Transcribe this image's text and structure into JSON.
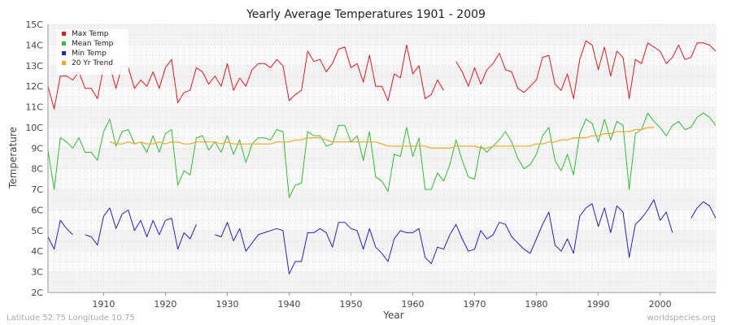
{
  "chart_data": {
    "type": "line",
    "title": "Yearly Average Temperatures 1901 - 2009",
    "xlabel": "Year",
    "ylabel": "Temperature",
    "xlim": [
      1901,
      2009
    ],
    "ylim": [
      2,
      15
    ],
    "x_ticks": [
      1910,
      1920,
      1930,
      1940,
      1950,
      1960,
      1970,
      1980,
      1990,
      2000
    ],
    "y_ticks": [
      "2C",
      "3C",
      "4C",
      "5C",
      "6C",
      "7C",
      "8C",
      "9C",
      "10C",
      "11C",
      "12C",
      "13C",
      "14C",
      "15C"
    ],
    "grid": true,
    "legend_position": "top-left",
    "x": [
      1901,
      1902,
      1903,
      1904,
      1905,
      1906,
      1907,
      1908,
      1909,
      1910,
      1911,
      1912,
      1913,
      1914,
      1915,
      1916,
      1917,
      1918,
      1919,
      1920,
      1921,
      1922,
      1923,
      1924,
      1925,
      1926,
      1927,
      1928,
      1929,
      1930,
      1931,
      1932,
      1933,
      1934,
      1935,
      1936,
      1937,
      1938,
      1939,
      1940,
      1941,
      1942,
      1943,
      1944,
      1945,
      1946,
      1947,
      1948,
      1949,
      1950,
      1951,
      1952,
      1953,
      1954,
      1955,
      1956,
      1957,
      1958,
      1959,
      1960,
      1961,
      1962,
      1963,
      1964,
      1965,
      1966,
      1967,
      1968,
      1969,
      1970,
      1971,
      1972,
      1973,
      1974,
      1975,
      1976,
      1977,
      1978,
      1979,
      1980,
      1981,
      1982,
      1983,
      1984,
      1985,
      1986,
      1987,
      1988,
      1989,
      1990,
      1991,
      1992,
      1993,
      1994,
      1995,
      1996,
      1997,
      1998,
      1999,
      2000,
      2001,
      2002,
      2003,
      2004,
      2005,
      2006,
      2007,
      2008,
      2009
    ],
    "series": [
      {
        "name": "Max Temp",
        "color": "#e31a1c",
        "values": [
          12.0,
          10.9,
          12.5,
          12.5,
          12.3,
          12.7,
          11.9,
          11.9,
          11.4,
          12.9,
          13.0,
          11.9,
          13.0,
          12.9,
          11.9,
          12.3,
          12.0,
          12.7,
          11.9,
          12.9,
          13.3,
          11.2,
          11.7,
          11.8,
          12.9,
          12.7,
          12.1,
          12.5,
          12.0,
          13.1,
          11.8,
          12.4,
          12.0,
          12.8,
          13.1,
          13.1,
          12.9,
          13.3,
          13.0,
          11.3,
          11.6,
          11.8,
          13.7,
          13.2,
          13.3,
          12.7,
          13.1,
          13.8,
          13.9,
          12.9,
          13.1,
          12.2,
          13.5,
          12.0,
          12.0,
          11.3,
          12.6,
          12.4,
          14.0,
          12.6,
          13.0,
          11.4,
          11.6,
          12.3,
          11.8,
          null,
          13.2,
          12.7,
          12.0,
          12.9,
          12.1,
          12.8,
          13.1,
          13.6,
          12.8,
          12.7,
          11.9,
          11.7,
          12.0,
          12.3,
          13.4,
          13.5,
          12.1,
          11.8,
          12.6,
          11.4,
          13.3,
          14.2,
          14.0,
          12.8,
          13.9,
          12.5,
          13.7,
          13.4,
          11.4,
          13.3,
          13.1,
          14.1,
          13.9,
          13.7,
          13.1,
          13.4,
          14.0,
          13.3,
          13.4,
          14.1,
          14.1,
          14.0,
          13.7
        ]
      },
      {
        "name": "Mean Temp",
        "color": "#33bb33",
        "values": [
          8.9,
          7.0,
          9.5,
          9.3,
          9.0,
          9.5,
          8.8,
          8.8,
          8.4,
          9.8,
          10.4,
          9.1,
          9.8,
          9.9,
          9.2,
          9.3,
          8.8,
          9.6,
          8.8,
          9.7,
          9.9,
          7.2,
          7.9,
          7.7,
          9.5,
          9.6,
          8.9,
          9.3,
          8.8,
          9.6,
          8.7,
          9.4,
          8.3,
          9.2,
          9.5,
          9.5,
          9.4,
          9.9,
          9.8,
          6.6,
          7.2,
          7.3,
          9.8,
          9.6,
          9.6,
          9.1,
          9.2,
          10.1,
          10.1,
          9.3,
          9.6,
          8.4,
          9.8,
          7.6,
          7.4,
          6.9,
          8.7,
          8.6,
          10.0,
          8.6,
          9.5,
          7.0,
          7.0,
          7.8,
          7.4,
          8.2,
          9.4,
          8.4,
          7.6,
          7.5,
          9.1,
          8.8,
          9.1,
          9.4,
          9.8,
          9.3,
          8.5,
          8.0,
          8.2,
          8.7,
          9.6,
          10.0,
          8.4,
          7.9,
          8.7,
          7.7,
          9.7,
          10.4,
          10.2,
          9.3,
          10.4,
          9.4,
          10.3,
          10.1,
          7.0,
          9.7,
          9.9,
          10.7,
          10.3,
          10.0,
          9.6,
          10.1,
          10.3,
          9.9,
          10.0,
          10.5,
          10.7,
          10.5,
          10.1
        ]
      },
      {
        "name": "Min Temp",
        "color": "#2222cc",
        "values": [
          4.7,
          4.1,
          5.5,
          5.1,
          4.8,
          null,
          4.8,
          4.7,
          4.3,
          5.7,
          6.1,
          5.1,
          5.8,
          6.0,
          5.0,
          5.5,
          4.7,
          5.5,
          4.8,
          5.5,
          5.6,
          4.1,
          4.9,
          4.6,
          5.3,
          null,
          null,
          4.8,
          4.7,
          5.4,
          4.5,
          5.1,
          4.0,
          4.4,
          4.8,
          4.9,
          5.0,
          5.1,
          5.0,
          2.9,
          3.5,
          3.5,
          4.9,
          4.9,
          5.1,
          4.9,
          4.2,
          5.4,
          5.4,
          5.1,
          5.0,
          4.1,
          5.1,
          4.2,
          3.9,
          3.5,
          4.6,
          5.0,
          4.9,
          4.9,
          5.1,
          3.7,
          3.4,
          4.2,
          4.1,
          4.8,
          5.3,
          4.6,
          4.0,
          4.1,
          5.0,
          4.6,
          4.8,
          5.4,
          5.3,
          4.7,
          4.4,
          4.1,
          3.9,
          4.6,
          5.3,
          5.9,
          4.3,
          4.0,
          4.6,
          3.9,
          5.7,
          6.1,
          6.3,
          5.2,
          6.1,
          4.9,
          6.2,
          5.9,
          3.7,
          5.3,
          5.6,
          6.0,
          6.5,
          5.5,
          5.9,
          4.9,
          null,
          null,
          5.6,
          6.1,
          6.4,
          6.2,
          5.6
        ]
      },
      {
        "name": "20 Yr Trend",
        "color": "#f5a623",
        "values": [
          null,
          null,
          null,
          null,
          null,
          null,
          null,
          null,
          null,
          null,
          9.3,
          9.2,
          9.2,
          9.3,
          9.2,
          9.3,
          9.2,
          9.2,
          9.3,
          9.2,
          9.3,
          9.3,
          9.2,
          9.2,
          9.3,
          9.3,
          9.3,
          9.3,
          9.2,
          9.3,
          9.2,
          9.2,
          9.2,
          9.2,
          9.2,
          9.2,
          9.2,
          9.3,
          9.3,
          9.3,
          9.4,
          9.4,
          9.5,
          9.5,
          9.5,
          9.4,
          9.3,
          9.3,
          9.3,
          9.3,
          9.3,
          9.3,
          9.3,
          9.3,
          9.2,
          9.1,
          9.1,
          9.1,
          9.1,
          9.1,
          9.1,
          9.1,
          9.0,
          9.0,
          9.0,
          9.0,
          9.1,
          9.1,
          9.1,
          9.1,
          9.0,
          9.0,
          9.1,
          9.1,
          9.1,
          9.1,
          9.1,
          9.1,
          9.1,
          9.2,
          9.2,
          9.3,
          9.3,
          9.4,
          9.4,
          9.5,
          9.5,
          9.5,
          9.6,
          9.6,
          9.7,
          9.7,
          9.8,
          9.8,
          9.8,
          9.9,
          9.9,
          10.0,
          10.0,
          null,
          null,
          null,
          null,
          null,
          null,
          null,
          null,
          null,
          null
        ]
      }
    ]
  },
  "footer": {
    "location": "Latitude 52.75 Longitude 10.75",
    "source": "worldspecies.org"
  }
}
